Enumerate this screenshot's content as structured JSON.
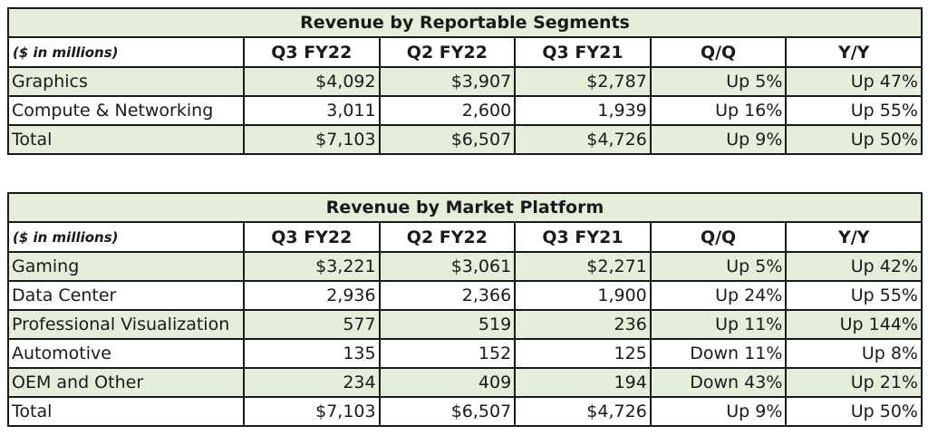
{
  "unit_label": "($ in millions)",
  "columns": [
    "Q3 FY22",
    "Q2 FY22",
    "Q3 FY21",
    "Q/Q",
    "Y/Y"
  ],
  "segments": {
    "title": "Revenue by Reportable Segments",
    "rows": [
      {
        "label": "Graphics",
        "values": [
          "$4,092",
          "$3,907",
          "$2,787",
          "Up 5%",
          "Up 47%"
        ],
        "shaded": true
      },
      {
        "label": "Compute & Networking",
        "values": [
          "3,011",
          "2,600",
          "1,939",
          "Up 16%",
          "Up 55%"
        ],
        "shaded": false
      },
      {
        "label": "Total",
        "values": [
          "$7,103",
          "$6,507",
          "$4,726",
          "Up 9%",
          "Up 50%"
        ],
        "shaded": true
      }
    ]
  },
  "platforms": {
    "title": "Revenue by Market Platform",
    "rows": [
      {
        "label": "Gaming",
        "values": [
          "$3,221",
          "$3,061",
          "$2,271",
          "Up 5%",
          "Up 42%"
        ],
        "shaded": true
      },
      {
        "label": "Data Center",
        "values": [
          "2,936",
          "2,366",
          "1,900",
          "Up 24%",
          "Up 55%"
        ],
        "shaded": false
      },
      {
        "label": "Professional Visualization",
        "values": [
          "577",
          "519",
          "236",
          "Up 11%",
          "Up 144%"
        ],
        "shaded": true
      },
      {
        "label": "Automotive",
        "values": [
          "135",
          "152",
          "125",
          "Down 11%",
          "Up 8%"
        ],
        "shaded": false
      },
      {
        "label": "OEM and Other",
        "values": [
          "234",
          "409",
          "194",
          "Down 43%",
          "Up 21%"
        ],
        "shaded": true
      },
      {
        "label": "Total",
        "values": [
          "$7,103",
          "$6,507",
          "$4,726",
          "Up 9%",
          "Up 50%"
        ],
        "shaded": false
      }
    ]
  },
  "colors": {
    "shade": "#e4eedb",
    "border": "#1a1a1a"
  }
}
